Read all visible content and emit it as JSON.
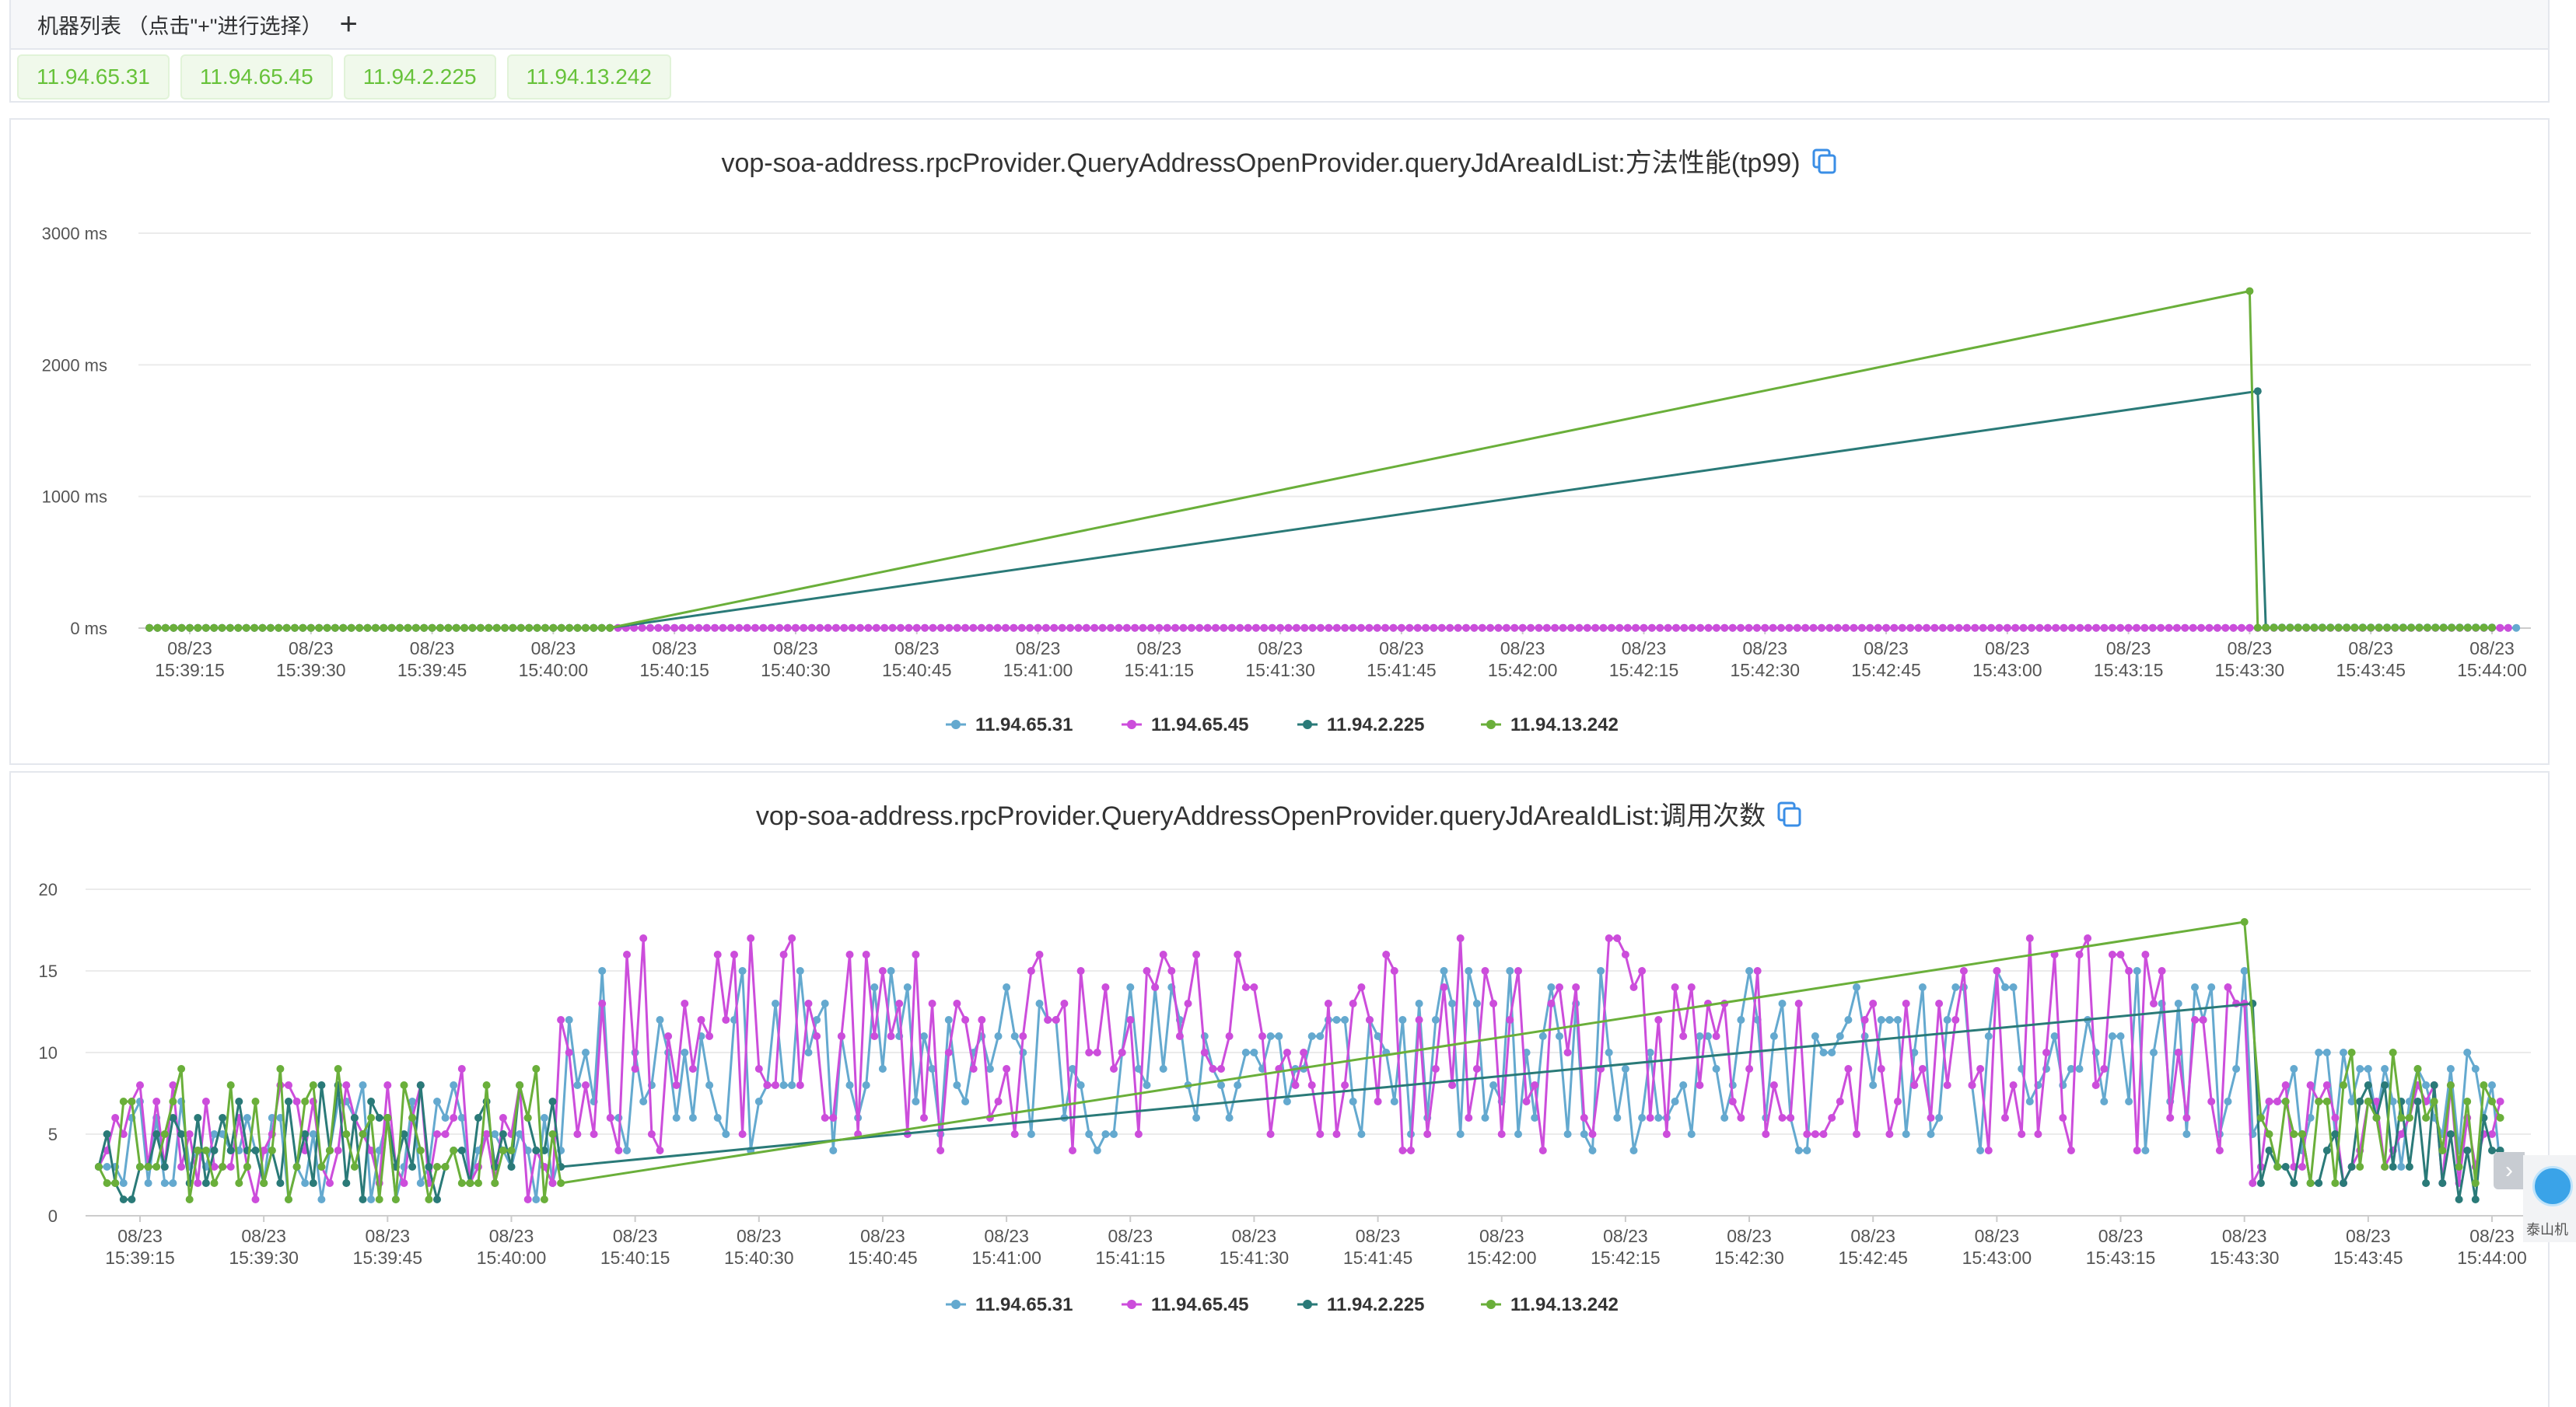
{
  "machine_list": {
    "header": "机器列表 （点击\"+\"进行选择）",
    "add_symbol": "+",
    "machines": [
      "11.94.65.31",
      "11.94.65.45",
      "11.94.2.225",
      "11.94.13.242"
    ]
  },
  "side_widget": {
    "arrow": "›",
    "label": "泰山机"
  },
  "colors": {
    "11.94.65.31": "#64a9cf",
    "11.94.65.45": "#cc4ddb",
    "11.94.2.225": "#2a7a78",
    "11.94.13.242": "#6aaf3a"
  },
  "chart_data": [
    {
      "type": "line",
      "title": "vop-soa-address.rpcProvider.QueryAddressOpenProvider.queryJdAreaIdList:方法性能(tp99)",
      "yticks": [
        "0 ms",
        "1000 ms",
        "2000 ms",
        "3000 ms"
      ],
      "ylim": [
        0,
        3000
      ],
      "x_ticks": [
        "08/23 15:39:15",
        "08/23 15:39:30",
        "08/23 15:39:45",
        "08/23 15:40:00",
        "08/23 15:40:15",
        "08/23 15:40:30",
        "08/23 15:40:45",
        "08/23 15:41:00",
        "08/23 15:41:15",
        "08/23 15:41:30",
        "08/23 15:41:45",
        "08/23 15:42:00",
        "08/23 15:42:15",
        "08/23 15:42:30",
        "08/23 15:42:45",
        "08/23 15:43:00",
        "08/23 15:43:15",
        "08/23 15:43:30",
        "08/23 15:43:45",
        "08/23 15:44:00"
      ],
      "legend": [
        "11.94.65.31",
        "11.94.65.45",
        "11.94.2.225",
        "11.94.13.242"
      ],
      "series": [
        {
          "name": "11.94.65.31",
          "desc": "flat near 0 ms, points every second 15:39:10–15:44:03"
        },
        {
          "name": "11.94.65.45",
          "desc": "flat near 0 ms, points every second 15:39:10–15:44:02"
        },
        {
          "name": "11.94.2.225",
          "gaps_connected": true,
          "points": [
            [
              "15:39:10",
              2
            ],
            [
              "15:40:07",
              2
            ],
            [
              "15:43:31",
              1800
            ],
            [
              "15:43:32",
              5
            ],
            [
              "15:44:00",
              5
            ]
          ]
        },
        {
          "name": "11.94.13.242",
          "gaps_connected": true,
          "points": [
            [
              "15:39:10",
              2
            ],
            [
              "15:40:07",
              2
            ],
            [
              "15:43:30",
              2560
            ],
            [
              "15:43:31",
              3
            ],
            [
              "15:44:00",
              3
            ]
          ]
        }
      ]
    },
    {
      "type": "line",
      "title": "vop-soa-address.rpcProvider.QueryAddressOpenProvider.queryJdAreaIdList:调用次数",
      "yticks": [
        "0",
        "5",
        "10",
        "15",
        "20"
      ],
      "ylim": [
        0,
        20
      ],
      "x_ticks": [
        "08/23 15:39:15",
        "08/23 15:39:30",
        "08/23 15:39:45",
        "08/23 15:40:00",
        "08/23 15:40:15",
        "08/23 15:40:30",
        "08/23 15:40:45",
        "08/23 15:41:00",
        "08/23 15:41:15",
        "08/23 15:41:30",
        "08/23 15:41:45",
        "08/23 15:42:00",
        "08/23 15:42:15",
        "08/23 15:42:30",
        "08/23 15:42:45",
        "08/23 15:43:00",
        "08/23 15:43:15",
        "08/23 15:43:30",
        "08/23 15:43:45",
        "08/23 15:44:00"
      ],
      "legend": [
        "11.94.65.31",
        "11.94.65.45",
        "11.94.2.225",
        "11.94.13.242"
      ],
      "series": [
        {
          "name": "11.94.65.31",
          "desc": "noisy 1–9 calls until 15:40:05, 4–15 calls 15:40:05–15:43:30, 3–10 calls after"
        },
        {
          "name": "11.94.65.45",
          "desc": "noisy 1–9 calls until 15:40:05, 4–17 calls 15:40:05–15:43:30, 2–9 calls after"
        },
        {
          "name": "11.94.2.225",
          "gaps_connected": true,
          "points": [
            [
              "15:40:06",
              3
            ],
            [
              "15:43:31",
              13
            ]
          ],
          "desc": "noisy 1–8 calls before 15:40:06 and after 15:43:31"
        },
        {
          "name": "11.94.13.242",
          "gaps_connected": true,
          "points": [
            [
              "15:40:06",
              2
            ],
            [
              "15:43:30",
              18
            ]
          ],
          "desc": "noisy 1–10 calls before 15:40:06 and after 15:43:30"
        }
      ]
    }
  ]
}
